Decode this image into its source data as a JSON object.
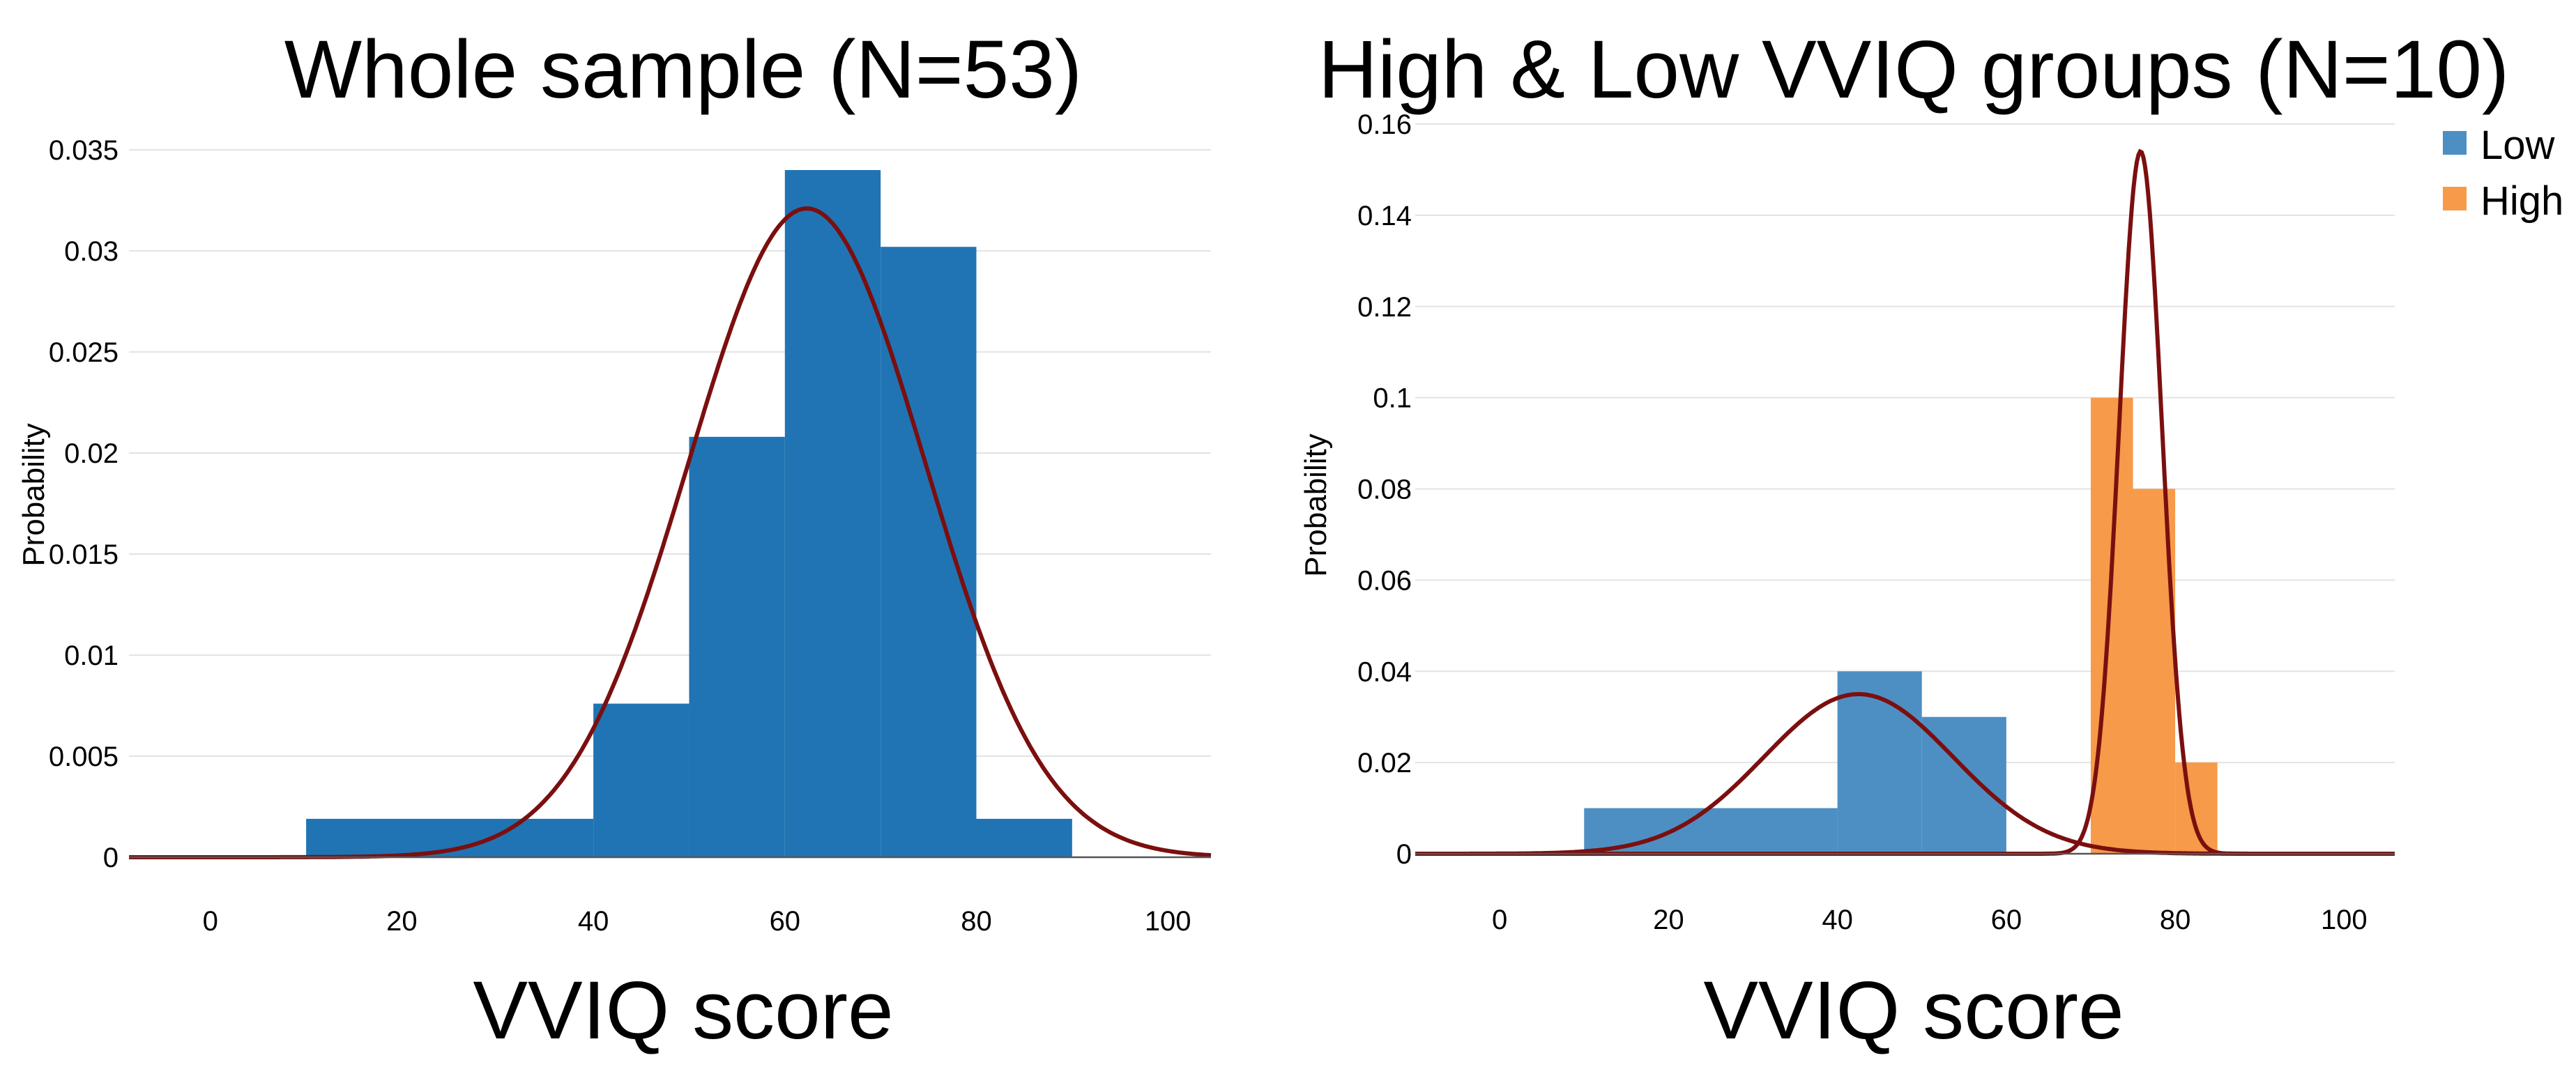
{
  "chart_data": [
    {
      "type": "bar",
      "title": "Whole sample (N=53)",
      "xlabel": "VVIQ score",
      "ylabel": "Probability",
      "xlim": [
        -8.5,
        104.5
      ],
      "ylim": [
        0,
        0.035
      ],
      "xticks": [
        "0",
        "20",
        "40",
        "60",
        "80",
        "100"
      ],
      "xtick_values": [
        0,
        20,
        40,
        60,
        80,
        100
      ],
      "yticks": [
        "0",
        "0.005",
        "0.01",
        "0.015",
        "0.02",
        "0.025",
        "0.03",
        "0.035"
      ],
      "ytick_values": [
        0,
        0.005,
        0.01,
        0.015,
        0.02,
        0.025,
        0.03,
        0.035
      ],
      "grid": true,
      "bins": [
        {
          "x0": 10,
          "x1": 40,
          "value": 0.0019
        },
        {
          "x0": 40,
          "x1": 50,
          "value": 0.0076
        },
        {
          "x0": 50,
          "x1": 60,
          "value": 0.0208
        },
        {
          "x0": 60,
          "x1": 70,
          "value": 0.034
        },
        {
          "x0": 70,
          "x1": 80,
          "value": 0.0302
        },
        {
          "x0": 80,
          "x1": 90,
          "value": 0.0019
        }
      ],
      "bar_color": "#2074b4",
      "fit": {
        "kind": "normal",
        "mean": 62.3,
        "sd": 12.4,
        "peak": 0.0321,
        "color": "#7b0f0f"
      }
    },
    {
      "type": "bar",
      "title": "High & Low VVIQ groups (N=10)",
      "xlabel": "VVIQ score",
      "ylabel": "Probability",
      "xlim": [
        -10,
        106
      ],
      "ylim": [
        0,
        0.16
      ],
      "xticks": [
        "0",
        "20",
        "40",
        "60",
        "80",
        "100"
      ],
      "xtick_values": [
        0,
        20,
        40,
        60,
        80,
        100
      ],
      "yticks": [
        "0",
        "0.02",
        "0.04",
        "0.06",
        "0.08",
        "0.1",
        "0.12",
        "0.14",
        "0.16"
      ],
      "ytick_values": [
        0,
        0.02,
        0.04,
        0.06,
        0.08,
        0.1,
        0.12,
        0.14,
        0.16
      ],
      "grid": true,
      "legend_position": "top-right",
      "series": [
        {
          "name": "Low",
          "color": "#4e8fc3",
          "bins": [
            {
              "x0": 10,
              "x1": 40,
              "value": 0.01
            },
            {
              "x0": 40,
              "x1": 50,
              "value": 0.04
            },
            {
              "x0": 50,
              "x1": 60,
              "value": 0.03
            }
          ],
          "fit": {
            "kind": "normal",
            "mean": 42.5,
            "sd": 11.2,
            "peak": 0.035,
            "color": "#7b0f0f"
          }
        },
        {
          "name": "High",
          "color": "#f79a49",
          "bins": [
            {
              "x0": 70,
              "x1": 75,
              "value": 0.1
            },
            {
              "x0": 75,
              "x1": 80,
              "value": 0.08
            },
            {
              "x0": 80,
              "x1": 85,
              "value": 0.02
            }
          ],
          "fit": {
            "kind": "normal",
            "mean": 75.9,
            "sd": 2.55,
            "peak": 0.154,
            "color": "#7b0f0f"
          }
        }
      ]
    }
  ]
}
